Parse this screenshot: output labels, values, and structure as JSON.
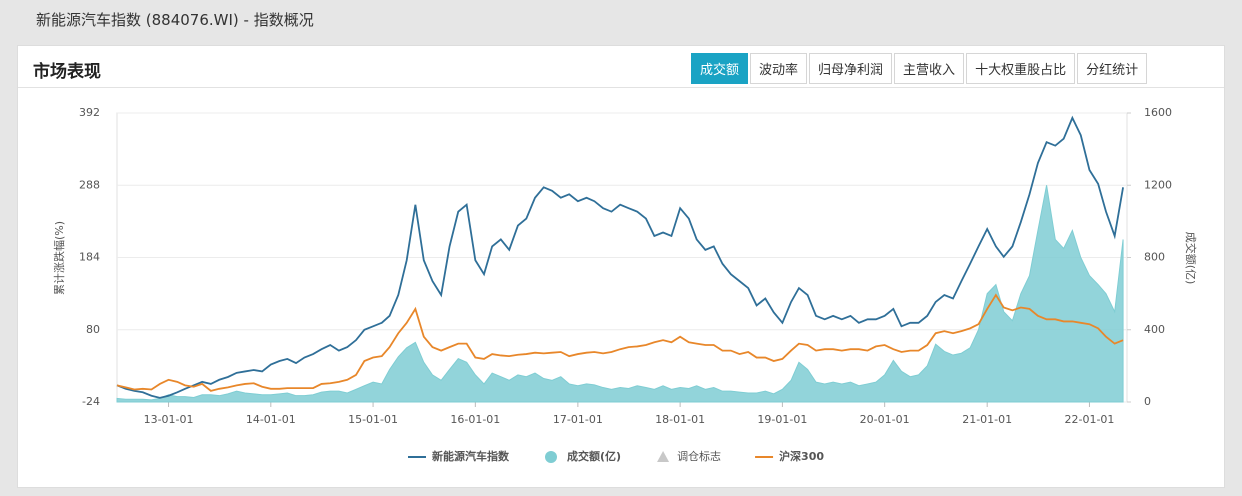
{
  "page_title": "新能源汽车指数 (884076.WI) - 指数概况",
  "panel_title": "市场表现",
  "tabs": [
    "成交额",
    "波动率",
    "归母净利润",
    "主营收入",
    "十大权重股占比",
    "分红统计"
  ],
  "active_tab": 0,
  "chart_data": {
    "type": "line",
    "y_label": "累计涨跌幅(%)",
    "y2_label": "成交额(亿)",
    "ylim": [
      -24,
      392
    ],
    "yticks": [
      -24,
      80,
      184,
      288,
      392
    ],
    "y2lim": [
      0,
      1600
    ],
    "y2ticks": [
      0,
      400,
      800,
      1200,
      1600
    ],
    "xlim": [
      "12-07-01",
      "22-05-15"
    ],
    "xticks": [
      "13-01-01",
      "14-01-01",
      "15-01-01",
      "16-01-01",
      "17-01-01",
      "18-01-01",
      "19-01-01",
      "20-01-01",
      "21-01-01",
      "22-01-01"
    ],
    "grid": true,
    "markers_legend": "调仓标志",
    "markers_color": "#c8c8c8",
    "x": [
      "12-07-01",
      "12-08-01",
      "12-09-01",
      "12-10-01",
      "12-11-01",
      "12-12-01",
      "13-01-01",
      "13-02-01",
      "13-03-01",
      "13-04-01",
      "13-05-01",
      "13-06-01",
      "13-07-01",
      "13-08-01",
      "13-09-01",
      "13-10-01",
      "13-11-01",
      "13-12-01",
      "14-01-01",
      "14-02-01",
      "14-03-01",
      "14-04-01",
      "14-05-01",
      "14-06-01",
      "14-07-01",
      "14-08-01",
      "14-09-01",
      "14-10-01",
      "14-11-01",
      "14-12-01",
      "15-01-01",
      "15-02-01",
      "15-03-01",
      "15-04-01",
      "15-05-01",
      "15-06-01",
      "15-07-01",
      "15-08-01",
      "15-09-01",
      "15-10-01",
      "15-11-01",
      "15-12-01",
      "16-01-01",
      "16-02-01",
      "16-03-01",
      "16-04-01",
      "16-05-01",
      "16-06-01",
      "16-07-01",
      "16-08-01",
      "16-09-01",
      "16-10-01",
      "16-11-01",
      "16-12-01",
      "17-01-01",
      "17-02-01",
      "17-03-01",
      "17-04-01",
      "17-05-01",
      "17-06-01",
      "17-07-01",
      "17-08-01",
      "17-09-01",
      "17-10-01",
      "17-11-01",
      "17-12-01",
      "18-01-01",
      "18-02-01",
      "18-03-01",
      "18-04-01",
      "18-05-01",
      "18-06-01",
      "18-07-01",
      "18-08-01",
      "18-09-01",
      "18-10-01",
      "18-11-01",
      "18-12-01",
      "19-01-01",
      "19-02-01",
      "19-03-01",
      "19-04-01",
      "19-05-01",
      "19-06-01",
      "19-07-01",
      "19-08-01",
      "19-09-01",
      "19-10-01",
      "19-11-01",
      "19-12-01",
      "20-01-01",
      "20-02-01",
      "20-03-01",
      "20-04-01",
      "20-05-01",
      "20-06-01",
      "20-07-01",
      "20-08-01",
      "20-09-01",
      "20-10-01",
      "20-11-01",
      "20-12-01",
      "21-01-01",
      "21-02-01",
      "21-03-01",
      "21-04-01",
      "21-05-01",
      "21-06-01",
      "21-07-01",
      "21-08-01",
      "21-09-01",
      "21-10-01",
      "21-11-01",
      "21-12-01",
      "22-01-01",
      "22-02-01",
      "22-03-01",
      "22-04-01",
      "22-05-01"
    ],
    "series": [
      {
        "name": "新能源汽车指数",
        "color": "#2f6f98",
        "kind": "line",
        "values": [
          0,
          -5,
          -8,
          -10,
          -15,
          -18,
          -15,
          -10,
          -5,
          0,
          5,
          2,
          8,
          12,
          18,
          20,
          22,
          20,
          30,
          35,
          38,
          32,
          40,
          45,
          52,
          58,
          50,
          55,
          65,
          80,
          85,
          90,
          100,
          130,
          180,
          260,
          180,
          150,
          130,
          200,
          250,
          260,
          180,
          160,
          200,
          210,
          195,
          230,
          240,
          270,
          285,
          280,
          270,
          275,
          265,
          270,
          265,
          255,
          250,
          260,
          255,
          250,
          240,
          215,
          220,
          215,
          255,
          240,
          210,
          195,
          200,
          175,
          160,
          150,
          140,
          115,
          125,
          105,
          90,
          120,
          140,
          130,
          100,
          95,
          100,
          95,
          100,
          90,
          95,
          95,
          100,
          110,
          85,
          90,
          90,
          100,
          120,
          130,
          125,
          150,
          175,
          200,
          225,
          200,
          185,
          200,
          235,
          275,
          320,
          350,
          345,
          355,
          385,
          360,
          310,
          290,
          250,
          215,
          285
        ]
      },
      {
        "name": "成交额(亿)",
        "color": "#7fcdd3",
        "kind": "area",
        "axis": "y2",
        "values": [
          20,
          15,
          15,
          15,
          12,
          20,
          40,
          30,
          30,
          25,
          40,
          40,
          35,
          45,
          60,
          50,
          45,
          40,
          40,
          45,
          50,
          35,
          35,
          40,
          55,
          60,
          60,
          50,
          70,
          90,
          110,
          100,
          180,
          250,
          300,
          330,
          220,
          150,
          120,
          180,
          240,
          220,
          150,
          100,
          160,
          140,
          120,
          150,
          140,
          160,
          130,
          120,
          140,
          100,
          90,
          100,
          95,
          80,
          70,
          80,
          75,
          90,
          80,
          70,
          90,
          70,
          80,
          75,
          90,
          70,
          80,
          60,
          60,
          55,
          50,
          50,
          60,
          45,
          70,
          120,
          220,
          180,
          110,
          100,
          110,
          100,
          110,
          90,
          100,
          110,
          150,
          230,
          170,
          140,
          150,
          200,
          320,
          280,
          260,
          270,
          300,
          400,
          600,
          650,
          500,
          450,
          600,
          700,
          950,
          1200,
          900,
          850,
          950,
          800,
          700,
          650,
          600,
          500,
          900
        ]
      },
      {
        "name": "沪深300",
        "color": "#e8872a",
        "kind": "line",
        "values": [
          0,
          -3,
          -6,
          -5,
          -6,
          2,
          8,
          5,
          0,
          -2,
          2,
          -8,
          -5,
          -3,
          0,
          2,
          3,
          -2,
          -5,
          -5,
          -4,
          -4,
          -4,
          -4,
          2,
          3,
          5,
          8,
          15,
          35,
          40,
          42,
          55,
          75,
          90,
          110,
          70,
          55,
          50,
          55,
          60,
          60,
          40,
          38,
          45,
          43,
          42,
          44,
          45,
          47,
          46,
          47,
          48,
          42,
          45,
          47,
          48,
          46,
          48,
          52,
          55,
          56,
          58,
          62,
          65,
          62,
          70,
          62,
          60,
          58,
          58,
          50,
          50,
          45,
          48,
          40,
          40,
          35,
          38,
          50,
          60,
          58,
          50,
          52,
          52,
          50,
          52,
          52,
          50,
          56,
          58,
          52,
          48,
          50,
          50,
          58,
          75,
          78,
          75,
          78,
          82,
          88,
          110,
          130,
          112,
          108,
          112,
          110,
          100,
          95,
          95,
          92,
          92,
          90,
          88,
          82,
          70,
          60,
          65
        ]
      }
    ]
  }
}
